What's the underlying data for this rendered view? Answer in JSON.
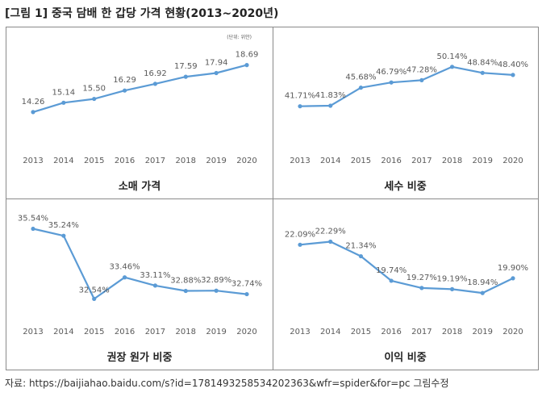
{
  "figure_title": "[그림 1] 중국 담배 한 갑당 가격 현황(2013~2020년)",
  "source": "자료: https://baijiahao.baidu.com/s?id=1781493258534202363&wfr=spider&for=pc 그림수정",
  "colors": {
    "line": "#5b9bd5",
    "text": "#595959",
    "border": "#8a8a8a"
  },
  "chart_data": [
    {
      "type": "line",
      "title": "소매 가격",
      "unit_note": "(단위: 위안)",
      "x": [
        "2013",
        "2014",
        "2015",
        "2016",
        "2017",
        "2018",
        "2019",
        "2020"
      ],
      "values": [
        14.26,
        15.14,
        15.5,
        16.29,
        16.92,
        17.59,
        17.94,
        18.69
      ],
      "labels": [
        "14.26",
        "15.14",
        "15.50",
        "16.29",
        "16.92",
        "17.59",
        "17.94",
        "18.69"
      ],
      "ylim": [
        12.5,
        19.5
      ],
      "grid": false
    },
    {
      "type": "line",
      "title": "세수 비중",
      "x": [
        "2013",
        "2014",
        "2015",
        "2016",
        "2017",
        "2018",
        "2019",
        "2020"
      ],
      "values": [
        41.71,
        41.83,
        45.68,
        46.79,
        47.28,
        50.14,
        48.84,
        48.4
      ],
      "labels": [
        "41.71%",
        "41.83%",
        "45.68%",
        "46.79%",
        "47.28%",
        "50.14%",
        "48.84%",
        "48.40%"
      ],
      "ylim": [
        37,
        52
      ],
      "grid": false
    },
    {
      "type": "line",
      "title": "권장 원가 비중",
      "x": [
        "2013",
        "2014",
        "2015",
        "2016",
        "2017",
        "2018",
        "2019",
        "2020"
      ],
      "values": [
        35.54,
        35.24,
        32.54,
        33.46,
        33.11,
        32.88,
        32.89,
        32.74
      ],
      "labels": [
        "35.54%",
        "35.24%",
        "32.54%",
        "33.46%",
        "33.11%",
        "32.88%",
        "32.89%",
        "32.74%"
      ],
      "ylim": [
        32.0,
        35.8
      ],
      "grid": false
    },
    {
      "type": "line",
      "title": "이익 비중",
      "x": [
        "2013",
        "2014",
        "2015",
        "2016",
        "2017",
        "2018",
        "2019",
        "2020"
      ],
      "values": [
        22.09,
        22.29,
        21.34,
        19.74,
        19.27,
        19.19,
        18.94,
        19.9
      ],
      "labels": [
        "22.09%",
        "22.29%",
        "21.34%",
        "19.74%",
        "19.27%",
        "19.19%",
        "18.94%",
        "19.90%"
      ],
      "ylim": [
        18.0,
        23.0
      ],
      "grid": false
    }
  ]
}
